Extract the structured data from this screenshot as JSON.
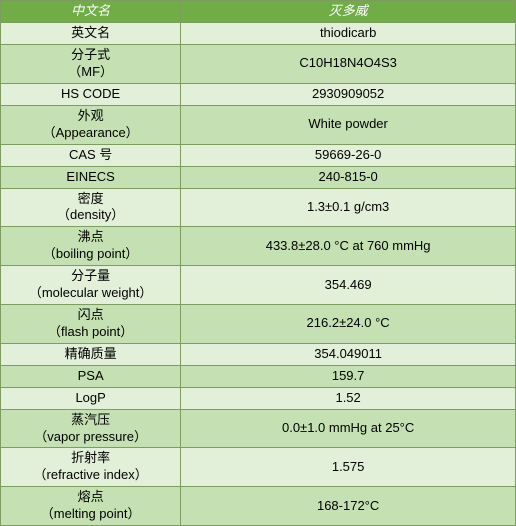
{
  "header": {
    "left": "中文名",
    "right": "灭多威"
  },
  "rows": [
    {
      "label": "英文名",
      "value": "thiodicarb",
      "shade": "light",
      "lines": 1
    },
    {
      "label": "分子式\n（MF）",
      "value": "C10H18N4O4S3",
      "shade": "dark",
      "lines": 2
    },
    {
      "label": "HS CODE",
      "value": "2930909052",
      "shade": "light",
      "lines": 1
    },
    {
      "label": "外观\n（Appearance）",
      "value": "White powder",
      "shade": "dark",
      "lines": 2
    },
    {
      "label": "CAS 号",
      "value": "59669-26-0",
      "shade": "light",
      "lines": 1
    },
    {
      "label": "EINECS",
      "value": "240-815-0",
      "shade": "dark",
      "lines": 1
    },
    {
      "label": "密度\n（density）",
      "value": "1.3±0.1 g/cm3",
      "shade": "light",
      "lines": 2
    },
    {
      "label": "沸点\n（boiling point）",
      "value": "433.8±28.0 °C at 760 mmHg",
      "shade": "dark",
      "lines": 2
    },
    {
      "label": "分子量\n（molecular weight）",
      "value": "354.469",
      "shade": "light",
      "lines": 2
    },
    {
      "label": "闪点\n（flash point）",
      "value": "216.2±24.0 °C",
      "shade": "dark",
      "lines": 2
    },
    {
      "label": "精确质量",
      "value": "354.049011",
      "shade": "light",
      "lines": 1
    },
    {
      "label": "PSA",
      "value": "159.7",
      "shade": "dark",
      "lines": 1
    },
    {
      "label": "LogP",
      "value": "1.52",
      "shade": "light",
      "lines": 1
    },
    {
      "label": "蒸汽压\n（vapor pressure）",
      "value": "0.0±1.0 mmHg at 25°C",
      "shade": "dark",
      "lines": 2
    },
    {
      "label": "折射率\n（refractive index）",
      "value": "1.575",
      "shade": "light",
      "lines": 2
    },
    {
      "label": "熔点\n（melting point）",
      "value": "168-172°C",
      "shade": "dark",
      "lines": 2
    }
  ],
  "colors": {
    "header_bg": "#70ad47",
    "header_text": "#ffffff",
    "light_bg": "#e2efd9",
    "dark_bg": "#c5e0b3",
    "border": "#7f9c60"
  }
}
